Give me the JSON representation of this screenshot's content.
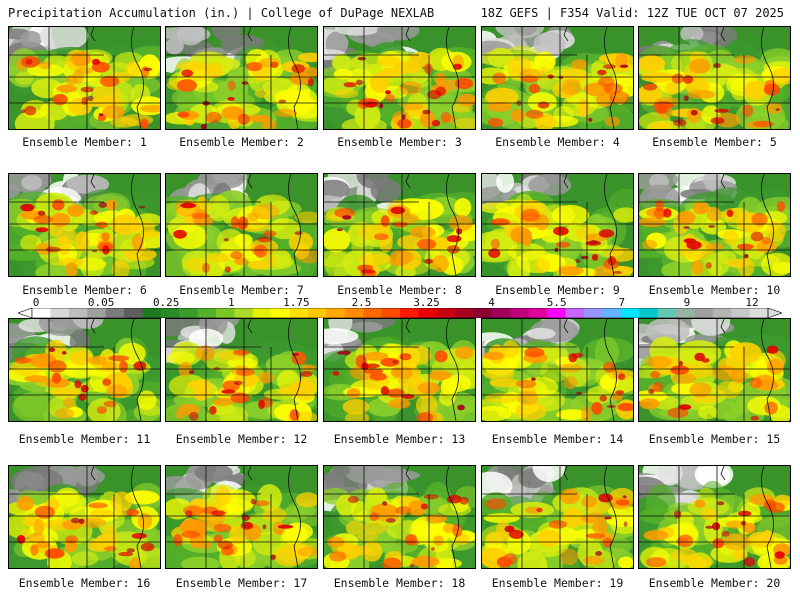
{
  "header": {
    "left": "Precipitation Accumulation (in.) | College of DuPage NEXLAB",
    "right": "18Z GEFS | F354 Valid: 12Z TUE OCT 07 2025"
  },
  "members": [
    {
      "label": "Ensemble Member: 1"
    },
    {
      "label": "Ensemble Member: 2"
    },
    {
      "label": "Ensemble Member: 3"
    },
    {
      "label": "Ensemble Member: 4"
    },
    {
      "label": "Ensemble Member: 5"
    },
    {
      "label": "Ensemble Member: 6"
    },
    {
      "label": "Ensemble Member: 7"
    },
    {
      "label": "Ensemble Member: 8"
    },
    {
      "label": "Ensemble Member: 9"
    },
    {
      "label": "Ensemble Member: 10"
    },
    {
      "label": "Ensemble Member: 11"
    },
    {
      "label": "Ensemble Member: 12"
    },
    {
      "label": "Ensemble Member: 13"
    },
    {
      "label": "Ensemble Member: 14"
    },
    {
      "label": "Ensemble Member: 15"
    },
    {
      "label": "Ensemble Member: 16"
    },
    {
      "label": "Ensemble Member: 17"
    },
    {
      "label": "Ensemble Member: 18"
    },
    {
      "label": "Ensemble Member: 19"
    },
    {
      "label": "Ensemble Member: 20"
    }
  ],
  "colorbar": {
    "ticks": [
      "0",
      "0.05",
      "0.25",
      "1",
      "1.75",
      "2.5",
      "3.25",
      "4",
      "5.5",
      "7",
      "9",
      "12"
    ],
    "colors": [
      "#ffffff",
      "#d8d8d8",
      "#bdbdbd",
      "#a0a0a0",
      "#7c7c7c",
      "#5e5e5e",
      "#1e7a1e",
      "#2a8a2a",
      "#3a9a2a",
      "#55b02a",
      "#7ac828",
      "#a8dc28",
      "#e6f000",
      "#ffff00",
      "#ffe000",
      "#ffc800",
      "#ffa800",
      "#ff8c00",
      "#ff6a00",
      "#ff4a00",
      "#ff1a00",
      "#e80000",
      "#c80010",
      "#a8001e",
      "#8c0030",
      "#a0005a",
      "#c0007a",
      "#e0009e",
      "#ff00ff",
      "#c864ff",
      "#9696ff",
      "#64b4ff",
      "#00e6ff",
      "#00c8c8",
      "#64c8b4",
      "#96b4a0",
      "#a0a0a0",
      "#b4b4b4",
      "#c8c8c8",
      "#dcdcdc"
    ]
  }
}
